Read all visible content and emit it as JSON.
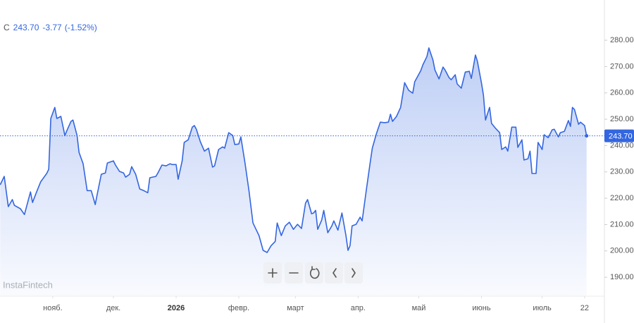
{
  "chart_data": {
    "type": "area",
    "header": {
      "symbol": "C",
      "last": "243.70",
      "change": "-3.77",
      "change_pct": "(-1.52%)"
    },
    "watermark": "InstaFintech",
    "color": "#3366e0",
    "grid": false,
    "last_price": {
      "value": 243.7,
      "label": "243.70"
    },
    "x": [
      -26,
      -24,
      -22,
      -20,
      -19,
      -16,
      -14,
      -11,
      -10,
      -8,
      -6,
      -3,
      -2,
      -1,
      1,
      2,
      4,
      6,
      7,
      9,
      10,
      12,
      13,
      15,
      17,
      19,
      21,
      22,
      24,
      26,
      27,
      30,
      31,
      33,
      35,
      36,
      38,
      39,
      41,
      43,
      45,
      47,
      48,
      51,
      52,
      54,
      56,
      58,
      59,
      61,
      62,
      64,
      65,
      67,
      69,
      70,
      71,
      73,
      75,
      77,
      79,
      80,
      82,
      84,
      85,
      87,
      89,
      90,
      92,
      93,
      95,
      97,
      99,
      100,
      102,
      104,
      106,
      108,
      110,
      111,
      113,
      115,
      117,
      119,
      121,
      123,
      125,
      126,
      128,
      129,
      130,
      131,
      133,
      134,
      136,
      138,
      139,
      141,
      143,
      145,
      146,
      147,
      148,
      150,
      152,
      153,
      155,
      157,
      158,
      160,
      162,
      164,
      166,
      167,
      168,
      170,
      172,
      174,
      176,
      178,
      179,
      182,
      183,
      185,
      186,
      188,
      189,
      191,
      193,
      194,
      196,
      197,
      199,
      200,
      202,
      204,
      206,
      207,
      209,
      210,
      212,
      213,
      214,
      216,
      217,
      219,
      221,
      222,
      224,
      225,
      227,
      229,
      230,
      232,
      233,
      235,
      236,
      237,
      239,
      240,
      242,
      243,
      245,
      247,
      248,
      250,
      251,
      253,
      255,
      256,
      257,
      258,
      260,
      261,
      263,
      264
    ],
    "values": [
      225.1,
      228.3,
      216.8,
      219.5,
      217.3,
      216.0,
      213.8,
      222.4,
      218.4,
      222.4,
      226.2,
      229.4,
      231.0,
      250.3,
      254.5,
      250.3,
      251.1,
      243.8,
      245.7,
      249.2,
      249.7,
      243.8,
      237.4,
      233.1,
      222.9,
      222.9,
      217.6,
      221.6,
      229.1,
      229.6,
      233.4,
      234.2,
      232.6,
      230.2,
      229.6,
      228.0,
      229.1,
      232.0,
      229.1,
      223.5,
      222.9,
      222.1,
      227.8,
      228.3,
      229.6,
      232.6,
      232.3,
      233.1,
      232.8,
      232.8,
      227.2,
      234.2,
      241.2,
      242.2,
      247.0,
      247.6,
      246.2,
      241.4,
      237.9,
      239.0,
      231.8,
      232.3,
      238.5,
      239.5,
      239.0,
      244.9,
      243.8,
      240.4,
      240.6,
      243.3,
      233.7,
      222.9,
      210.6,
      209.0,
      205.8,
      200.2,
      199.4,
      202.0,
      203.6,
      210.6,
      205.8,
      209.5,
      210.9,
      208.2,
      210.1,
      208.5,
      218.1,
      219.5,
      214.1,
      214.4,
      215.4,
      208.2,
      211.7,
      215.4,
      206.9,
      209.5,
      211.4,
      207.9,
      214.4,
      205.8,
      200.2,
      202.0,
      209.5,
      210.1,
      212.8,
      211.4,
      222.9,
      233.7,
      239.0,
      244.4,
      248.9,
      248.7,
      248.9,
      251.9,
      249.2,
      251.1,
      254.5,
      263.9,
      261.0,
      259.9,
      264.2,
      268.5,
      270.6,
      273.8,
      277.1,
      272.5,
      268.7,
      265.3,
      269.8,
      268.7,
      265.8,
      265.0,
      266.9,
      263.4,
      261.8,
      267.9,
      268.2,
      265.5,
      274.4,
      272.0,
      263.7,
      259.1,
      249.7,
      254.5,
      248.4,
      246.5,
      244.9,
      238.5,
      239.5,
      237.9,
      247.0,
      247.0,
      239.3,
      242.2,
      234.5,
      235.0,
      237.9,
      229.4,
      229.4,
      241.2,
      238.5,
      244.1,
      243.0,
      246.0,
      246.2,
      243.3,
      244.9,
      245.4,
      249.5,
      247.3,
      254.5,
      253.7,
      248.1,
      248.9,
      247.6,
      243.7
    ],
    "xlim": [
      -26.1,
      272.8
    ],
    "xticks": [
      {
        "value": 0,
        "label": "нояб."
      },
      {
        "value": 30,
        "label": "дек."
      },
      {
        "value": 61,
        "label": "2026"
      },
      {
        "value": 92,
        "label": "февр."
      },
      {
        "value": 120,
        "label": "март"
      },
      {
        "value": 151,
        "label": "апр."
      },
      {
        "value": 181,
        "label": "май"
      },
      {
        "value": 212,
        "label": "июнь"
      },
      {
        "value": 242,
        "label": "июль"
      },
      {
        "value": 263,
        "label": "22"
      }
    ],
    "ylim": [
      182.8,
      292.6
    ],
    "yticks": [
      {
        "value": 190,
        "label": "190.00"
      },
      {
        "value": 200,
        "label": "200.00"
      },
      {
        "value": 210,
        "label": "210.00"
      },
      {
        "value": 220,
        "label": "220.00"
      },
      {
        "value": 230,
        "label": "230.00"
      },
      {
        "value": 240,
        "label": "240.00"
      },
      {
        "value": 250,
        "label": "250.00"
      },
      {
        "value": 260,
        "label": "260.00"
      },
      {
        "value": 270,
        "label": "270.00"
      },
      {
        "value": 280,
        "label": "280.00"
      }
    ]
  }
}
